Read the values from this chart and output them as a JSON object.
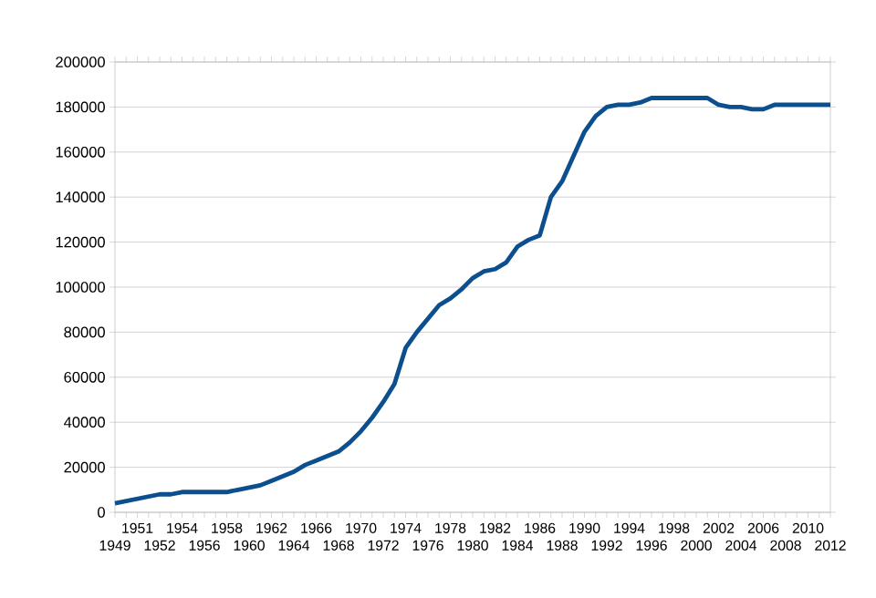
{
  "chart_data": {
    "type": "line",
    "categories": [
      "1949",
      null,
      "1951",
      null,
      "1952",
      null,
      "1954",
      null,
      "1956",
      null,
      "1958",
      null,
      "1960",
      null,
      "1962",
      null,
      "1964",
      null,
      "1966",
      null,
      "1968",
      null,
      "1970",
      null,
      "1972",
      null,
      "1974",
      null,
      "1976",
      null,
      "1978",
      null,
      "1980",
      null,
      "1982",
      null,
      "1984",
      null,
      "1986",
      null,
      "1988",
      null,
      "1990",
      null,
      "1992",
      null,
      "1994",
      null,
      "1996",
      null,
      "1998",
      null,
      "2000",
      null,
      "2002",
      null,
      "2004",
      null,
      "2006",
      null,
      "2008",
      null,
      "2010",
      null,
      "2012"
    ],
    "series": [
      {
        "color": "#0b4f8e",
        "values": [
          4000,
          5000,
          6000,
          7000,
          8000,
          8000,
          9000,
          9000,
          9000,
          9000,
          9000,
          10000,
          11000,
          12000,
          14000,
          16000,
          18000,
          21000,
          23000,
          25000,
          27000,
          31000,
          36000,
          42000,
          49000,
          57000,
          73000,
          80000,
          86000,
          92000,
          95000,
          99000,
          104000,
          107000,
          108000,
          111000,
          118000,
          121000,
          123000,
          140000,
          147000,
          158000,
          169000,
          176000,
          180000,
          181000,
          181000,
          182000,
          184000,
          184000,
          184000,
          184000,
          184000,
          184000,
          181000,
          180000,
          180000,
          179000,
          179000,
          181000,
          181000,
          181000,
          181000,
          181000,
          181000
        ]
      }
    ],
    "ylim": [
      0,
      200000
    ],
    "yticks": [
      0,
      20000,
      40000,
      60000,
      80000,
      100000,
      120000,
      140000,
      160000,
      180000,
      200000
    ],
    "grid": "y",
    "marker": "none",
    "line_style": "solid"
  }
}
